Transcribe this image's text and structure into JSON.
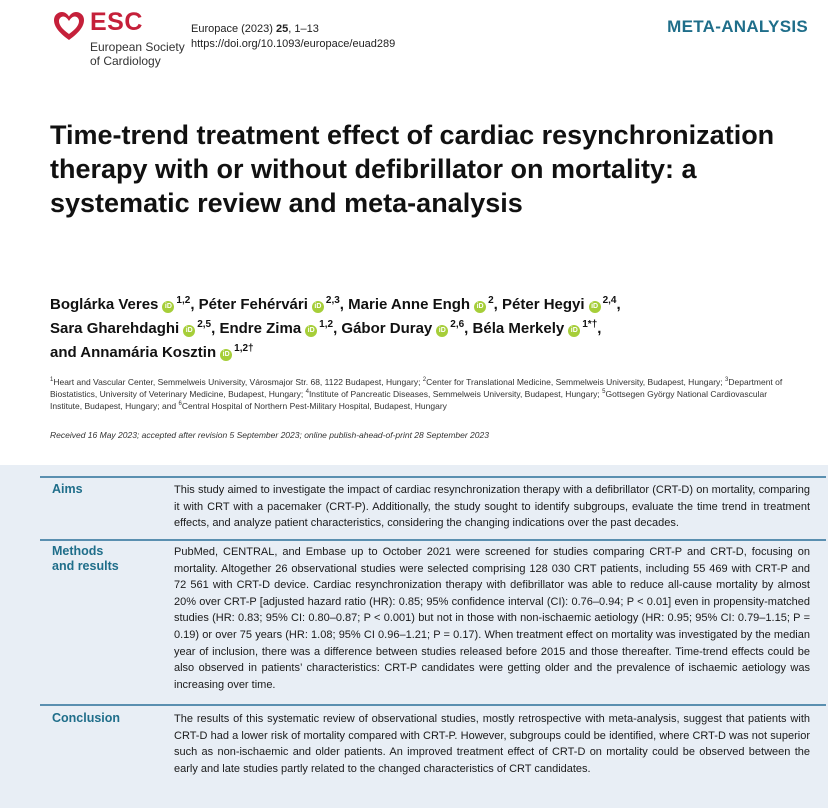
{
  "header": {
    "brand": "ESC",
    "brand_sub_line1": "European Society",
    "brand_sub_line2": "of Cardiology",
    "journal": "Europace (2023) ",
    "volume": "25",
    "pages": ", 1–13",
    "doi": "https://doi.org/10.1093/europace/euad289",
    "article_type": "META-ANALYSIS",
    "brand_color": "#c5203a",
    "accent_color": "#1f6e8a"
  },
  "title": "Time-trend treatment effect of cardiac resynchronization therapy with or without defibrillator on mortality: a systematic review and meta-analysis",
  "authors": [
    {
      "name": "Boglárka Veres",
      "sup": "1,2",
      "sep": ", "
    },
    {
      "name": "Péter Fehérvári",
      "sup": "2,3",
      "sep": ", "
    },
    {
      "name": "Marie Anne Engh",
      "sup": "2",
      "sep": ", "
    },
    {
      "name": "Péter Hegyi",
      "sup": "2,4",
      "sep": ","
    },
    {
      "name": "Sara Gharehdaghi",
      "sup": "2,5",
      "sep": ", "
    },
    {
      "name": "Endre Zima",
      "sup": "1,2",
      "sep": ", "
    },
    {
      "name": "Gábor Duray",
      "sup": "2,6",
      "sep": ", "
    },
    {
      "name": "Béla Merkely",
      "sup": "1*†",
      "sep": ","
    },
    {
      "name": "and Annamária Kosztin",
      "sup": "1,2†",
      "sep": ""
    }
  ],
  "orcid_icon": "orcid-icon",
  "affiliations": [
    {
      "n": "1",
      "text": "Heart and Vascular Center, Semmelweis University, Városmajor Str. 68, 1122 Budapest, Hungary; "
    },
    {
      "n": "2",
      "text": "Center for Translational Medicine, Semmelweis University, Budapest, Hungary; "
    },
    {
      "n": "3",
      "text": "Department of Biostatistics, University of Veterinary Medicine, Budapest, Hungary; "
    },
    {
      "n": "4",
      "text": "Institute of Pancreatic Diseases, Semmelweis University, Budapest, Hungary; "
    },
    {
      "n": "5",
      "text": "Gottsegen György National Cardiovascular Institute, Budapest, Hungary; and "
    },
    {
      "n": "6",
      "text": "Central Hospital of Northern Pest-Military Hospital, Budapest, Hungary"
    }
  ],
  "received": "Received 16 May 2023; accepted after revision 5 September 2023; online publish-ahead-of-print 28 September 2023",
  "abstract": {
    "aims_label": "Aims",
    "aims_text": "This study aimed to investigate the impact of cardiac resynchronization therapy with a defibrillator (CRT-D) on mortality, comparing it with CRT with a pacemaker (CRT-P). Additionally, the study sought to identify subgroups, evaluate the time trend in treatment effects, and analyze patient characteristics, considering the changing indications over the past decades.",
    "methods_label_line1": "Methods",
    "methods_label_line2": "and results",
    "methods_text": "PubMed, CENTRAL, and Embase up to October 2021 were screened for studies comparing CRT-P and CRT-D, focusing on mortality. Altogether 26 observational studies were selected comprising 128 030 CRT patients, including 55 469 with CRT-P and 72 561 with CRT-D device. Cardiac resynchronization therapy with defibrillator was able to reduce all-cause mortality by almost 20% over CRT-P [adjusted hazard ratio (HR): 0.85; 95% confidence interval (CI): 0.76–0.94; P < 0.01] even in propensity-matched studies (HR: 0.83; 95% CI: 0.80–0.87; P < 0.001) but not in those with non-ischaemic aetiology (HR: 0.95; 95% CI: 0.79–1.15; P = 0.19) or over 75 years (HR: 1.08; 95% CI 0.96–1.21; P = 0.17). When treatment effect on mortality was investigated by the median year of inclusion, there was a difference between studies released before 2015 and those thereafter. Time-trend effects could be also observed in patients’ characteristics: CRT-P candidates were getting older and the prevalence of ischaemic aetiology was increasing over time.",
    "conclusion_label": "Conclusion",
    "conclusion_text": "The results of this systematic review of observational studies, mostly retrospective with meta-analysis, suggest that patients with CRT-D had a lower risk of mortality compared with CRT-P. However, subgroups could be identified, where CRT-D was not superior such as non-ischaemic and older patients. An improved treatment effect of CRT-D on mortality could be observed between the early and late studies partly related to the changed characteristics of CRT candidates.",
    "background_color": "#e8eef5"
  }
}
